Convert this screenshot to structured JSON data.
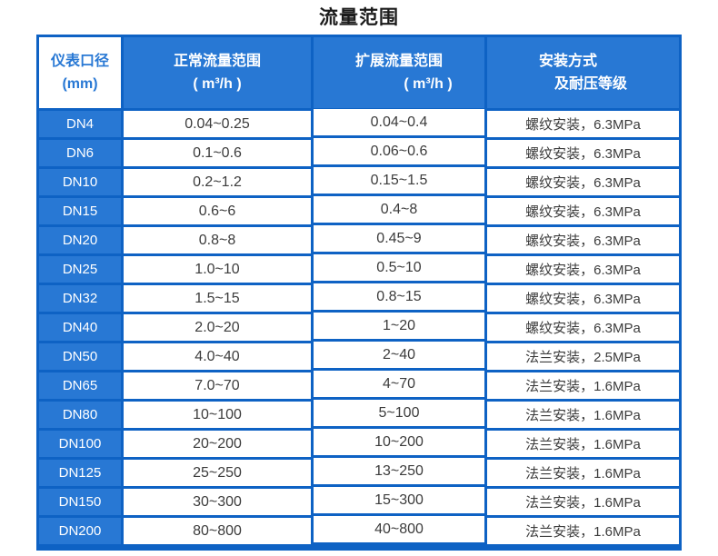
{
  "page": {
    "title": "流量范围"
  },
  "colors": {
    "table_fill_blue": "#2878D4",
    "table_border_blue": "#0E62C4",
    "header_text": "#FFFFFF",
    "diameter_header_text": "#2878D4",
    "data_text": "#3C3C3C",
    "background": "#FFFFFF"
  },
  "table": {
    "headers": {
      "col1": {
        "line1": "仪表口径",
        "line2": "(mm)"
      },
      "col2": {
        "line1": "正常流量范围",
        "line2": "( m³/h )"
      },
      "col3": {
        "line1": "扩展流量范围",
        "line2": "( m³/h )"
      },
      "col4": {
        "line1": "安装方式",
        "line2": "及耐压等级"
      }
    }
  },
  "chart_data": {
    "type": "table",
    "title": "流量范围",
    "columns": [
      "仪表口径 (mm)",
      "正常流量范围 ( m³/h )",
      "扩展流量范围 ( m³/h )",
      "安装方式 及耐压等级"
    ],
    "rows": [
      [
        "DN4",
        "0.04~0.25",
        "0.04~0.4",
        "螺纹安装，6.3MPa"
      ],
      [
        "DN6",
        "0.1~0.6",
        "0.06~0.6",
        "螺纹安装，6.3MPa"
      ],
      [
        "DN10",
        "0.2~1.2",
        "0.15~1.5",
        "螺纹安装，6.3MPa"
      ],
      [
        "DN15",
        "0.6~6",
        "0.4~8",
        "螺纹安装，6.3MPa"
      ],
      [
        "DN20",
        "0.8~8",
        "0.45~9",
        "螺纹安装，6.3MPa"
      ],
      [
        "DN25",
        "1.0~10",
        "0.5~10",
        "螺纹安装，6.3MPa"
      ],
      [
        "DN32",
        "1.5~15",
        "0.8~15",
        "螺纹安装，6.3MPa"
      ],
      [
        "DN40",
        "2.0~20",
        "1~20",
        "螺纹安装，6.3MPa"
      ],
      [
        "DN50",
        "4.0~40",
        "2~40",
        "法兰安装，2.5MPa"
      ],
      [
        "DN65",
        "7.0~70",
        "4~70",
        "法兰安装，1.6MPa"
      ],
      [
        "DN80",
        "10~100",
        "5~100",
        "法兰安装，1.6MPa"
      ],
      [
        "DN100",
        "20~200",
        "10~200",
        "法兰安装，1.6MPa"
      ],
      [
        "DN125",
        "25~250",
        "13~250",
        "法兰安装，1.6MPa"
      ],
      [
        "DN150",
        "30~300",
        "15~300",
        "法兰安装，1.6MPa"
      ],
      [
        "DN200",
        "80~800",
        "40~800",
        "法兰安装，1.6MPa"
      ]
    ]
  }
}
